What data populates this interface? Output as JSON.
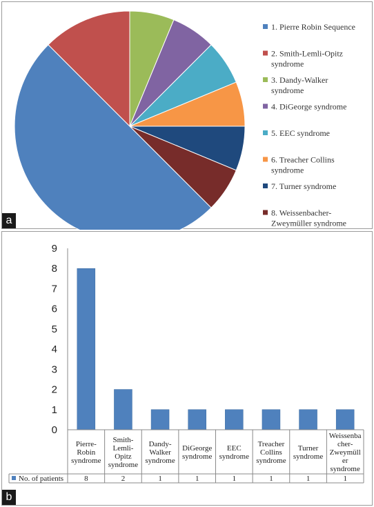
{
  "panel_labels": {
    "a": "a",
    "b": "b"
  },
  "chart_data": [
    {
      "type": "pie",
      "title": "",
      "legend_position": "right",
      "slices": [
        {
          "label": "1. Pierre Robin Sequence",
          "value": 8,
          "color": "#4f81bd"
        },
        {
          "label": "2. Smith-Lemli-Opitz syndrome",
          "label_lines": [
            "2. Smith-Lemli-Opitz",
            "syndrome"
          ],
          "value": 2,
          "color": "#c0504d"
        },
        {
          "label": "3. Dandy-Walker syndrome",
          "label_lines": [
            "3. Dandy-Walker",
            "syndrome"
          ],
          "value": 1,
          "color": "#9bbb59"
        },
        {
          "label": "4. DiGeorge syndrome",
          "value": 1,
          "color": "#8064a2"
        },
        {
          "label": "5. EEC syndrome",
          "value": 1,
          "color": "#4bacc6"
        },
        {
          "label": "6. Treacher Collins syndrome",
          "label_lines": [
            "6. Treacher Collins",
            "syndrome"
          ],
          "value": 1,
          "color": "#f79646"
        },
        {
          "label": "7. Turner syndrome",
          "value": 1,
          "color": "#1f497d"
        },
        {
          "label": "8. Weissenbacher-Zweymüller syndrome",
          "label_lines": [
            "8. Weissenbacher-",
            "Zweymüller syndrome"
          ],
          "value": 1,
          "color": "#772c2a"
        }
      ]
    },
    {
      "type": "bar",
      "title": "",
      "xlabel": "",
      "ylabel": "",
      "ylim": [
        0,
        9
      ],
      "yticks": [
        0,
        1,
        2,
        3,
        4,
        5,
        6,
        7,
        8,
        9
      ],
      "grid": false,
      "bar_color": "#4f81bd",
      "categories": [
        "Pierre-Robin syndrome",
        "Smith-Lemli-Opitz syndrome",
        "Dandy-Walker syndrome",
        "DiGeorge syndrome",
        "EEC syndrome",
        "Treacher Collins syndrome",
        "Turner syndrome",
        "Weissenbacher-Zweymüller syndrome"
      ],
      "category_lines": [
        [
          "Pierre-",
          "Robin",
          "syndrome"
        ],
        [
          "Smith-",
          "Lemli-",
          "Opitz",
          "syndrome"
        ],
        [
          "Dandy-",
          "Walker",
          "syndrome"
        ],
        [
          "DiGeorge",
          "syndrome"
        ],
        [
          "EEC",
          "syndrome"
        ],
        [
          "Treacher",
          "Collins",
          "syndrome"
        ],
        [
          "Turner",
          "syndrome"
        ],
        [
          "Weissenba",
          "cher-",
          "Zweymüll",
          "er",
          "syndrome"
        ]
      ],
      "series": [
        {
          "name": "No. of patients",
          "values": [
            8,
            2,
            1,
            1,
            1,
            1,
            1,
            1
          ]
        }
      ]
    }
  ]
}
